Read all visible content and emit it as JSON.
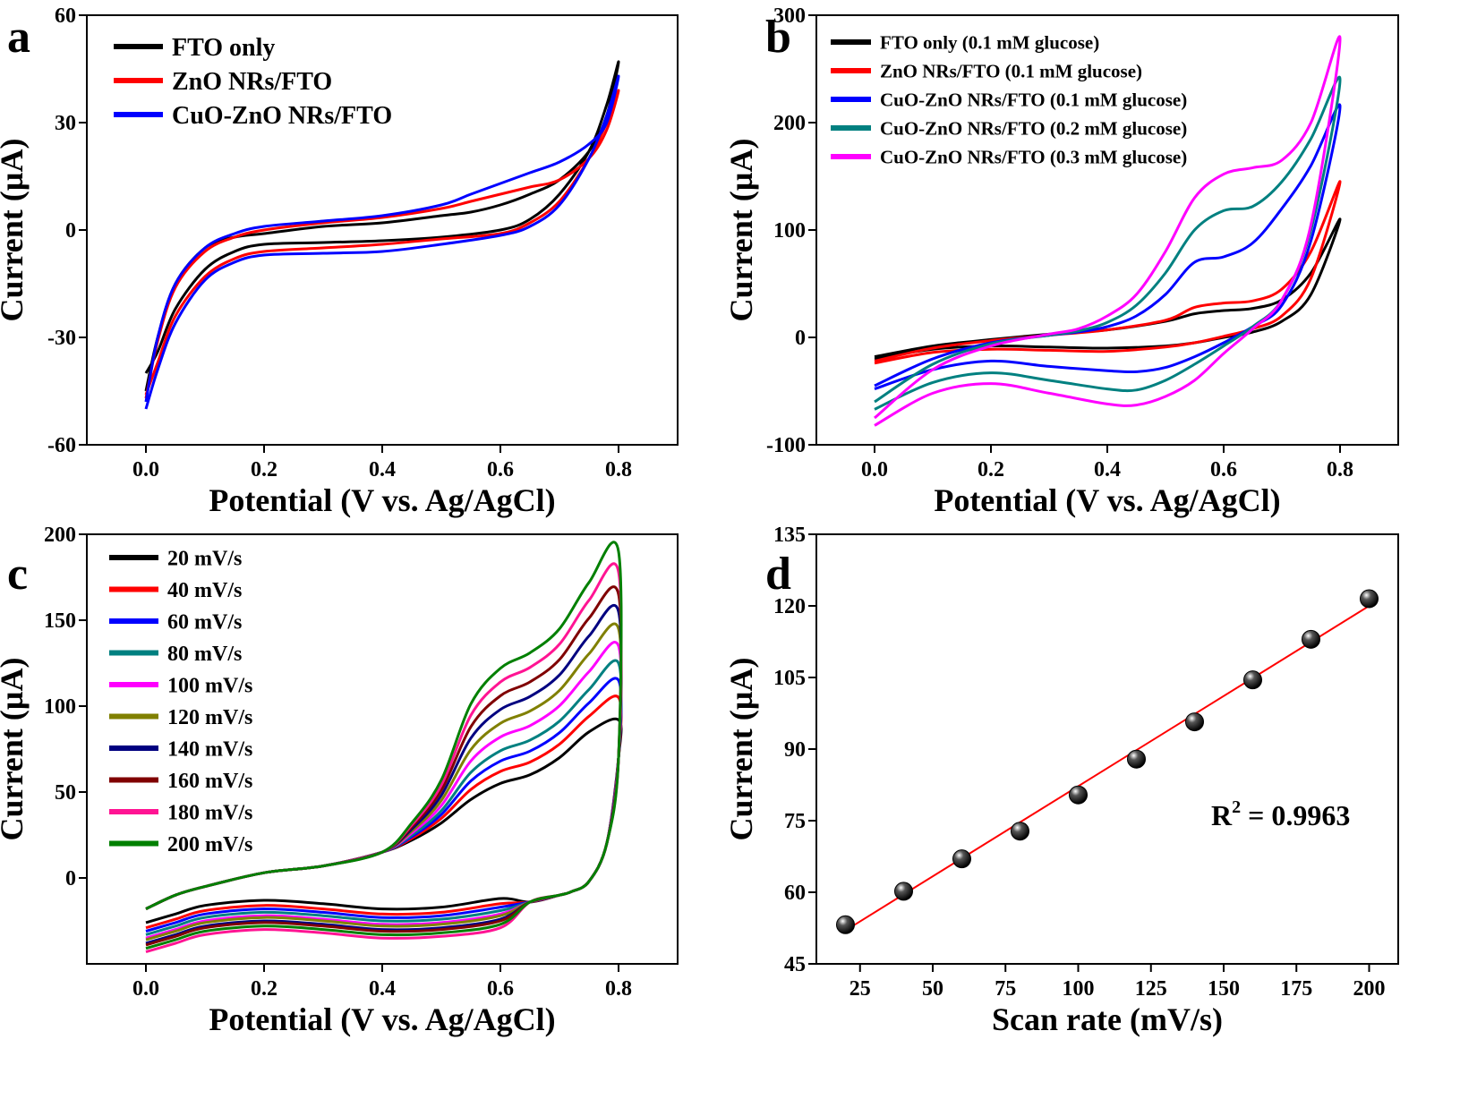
{
  "chart_data": [
    {
      "panel": "a",
      "type": "line",
      "xlabel": "Potential (V vs. Ag/AgCl)",
      "ylabel": "Current (µA)",
      "xlim": [
        -0.1,
        0.9
      ],
      "ylim": [
        -60,
        60
      ],
      "xticks": [
        0.0,
        0.2,
        0.4,
        0.6,
        0.8
      ],
      "xtick_labels": [
        "0.0",
        "0.2",
        "0.4",
        "0.6",
        "0.8"
      ],
      "yticks": [
        -60,
        -30,
        0,
        30,
        60
      ],
      "ytick_labels": [
        "-60",
        "-30",
        "0",
        "30",
        "60"
      ],
      "legend_position": "top-left",
      "series": [
        {
          "name": "FTO only",
          "color": "#000000",
          "x": [
            0.0,
            0.02,
            0.05,
            0.1,
            0.15,
            0.2,
            0.3,
            0.4,
            0.5,
            0.6,
            0.65,
            0.7,
            0.75,
            0.78,
            0.8,
            0.78,
            0.75,
            0.7,
            0.65,
            0.6,
            0.55,
            0.5,
            0.4,
            0.3,
            0.2,
            0.15,
            0.1,
            0.05,
            0.02,
            0.0
          ],
          "y": [
            -40,
            -34,
            -22,
            -11,
            -6,
            -4,
            -3.5,
            -3,
            -2,
            0,
            3,
            10,
            22,
            35,
            47,
            32,
            22,
            14,
            10,
            7,
            5,
            4,
            2,
            1,
            -1,
            -2,
            -5,
            -15,
            -30,
            -45
          ]
        },
        {
          "name": "ZnO NRs/FTO",
          "color": "#ff0000",
          "x": [
            0.0,
            0.02,
            0.05,
            0.1,
            0.15,
            0.2,
            0.3,
            0.4,
            0.5,
            0.6,
            0.65,
            0.7,
            0.75,
            0.78,
            0.8,
            0.78,
            0.75,
            0.7,
            0.65,
            0.6,
            0.55,
            0.5,
            0.4,
            0.3,
            0.2,
            0.15,
            0.1,
            0.05,
            0.02,
            0.0
          ],
          "y": [
            -46,
            -37,
            -24,
            -13,
            -8,
            -6,
            -5,
            -4,
            -2.5,
            -1,
            2,
            8,
            20,
            30,
            39,
            28,
            20,
            14,
            12,
            10,
            8,
            6,
            3.5,
            2,
            0,
            -2,
            -6,
            -16,
            -31,
            -47
          ]
        },
        {
          "name": "CuO-ZnO NRs/FTO",
          "color": "#0000ff",
          "x": [
            0.0,
            0.02,
            0.05,
            0.1,
            0.15,
            0.2,
            0.3,
            0.4,
            0.5,
            0.6,
            0.65,
            0.7,
            0.75,
            0.78,
            0.8,
            0.78,
            0.75,
            0.7,
            0.65,
            0.6,
            0.55,
            0.5,
            0.4,
            0.3,
            0.2,
            0.15,
            0.1,
            0.05,
            0.02,
            0.0
          ],
          "y": [
            -50,
            -39,
            -26,
            -14,
            -9,
            -7,
            -6.5,
            -6,
            -4,
            -1.5,
            1,
            7,
            20,
            32,
            43,
            30,
            24,
            19,
            16,
            13,
            10,
            7,
            4,
            2.5,
            1,
            -1,
            -5,
            -15,
            -30,
            -48
          ]
        }
      ]
    },
    {
      "panel": "b",
      "type": "line",
      "xlabel": "Potential (V vs. Ag/AgCl)",
      "ylabel": "Current (µA)",
      "xlim": [
        -0.1,
        0.9
      ],
      "ylim": [
        -100,
        300
      ],
      "xticks": [
        0.0,
        0.2,
        0.4,
        0.6,
        0.8
      ],
      "xtick_labels": [
        "0.0",
        "0.2",
        "0.4",
        "0.6",
        "0.8"
      ],
      "yticks": [
        -100,
        0,
        100,
        200,
        300
      ],
      "ytick_labels": [
        "-100",
        "0",
        "100",
        "200",
        "300"
      ],
      "legend_position": "top-left",
      "series": [
        {
          "name": "FTO only (0.1 mM glucose)",
          "color": "#000000",
          "x": [
            0.0,
            0.1,
            0.2,
            0.3,
            0.4,
            0.5,
            0.55,
            0.6,
            0.65,
            0.7,
            0.75,
            0.8,
            0.75,
            0.7,
            0.65,
            0.6,
            0.55,
            0.5,
            0.4,
            0.3,
            0.2,
            0.1,
            0.0
          ],
          "y": [
            -18,
            -8,
            -2,
            3,
            7,
            15,
            22,
            25,
            27,
            35,
            60,
            110,
            40,
            15,
            5,
            0,
            -5,
            -8,
            -10,
            -9,
            -8,
            -11,
            -20
          ]
        },
        {
          "name": "ZnO NRs/FTO (0.1 mM glucose)",
          "color": "#ff0000",
          "x": [
            0.0,
            0.1,
            0.2,
            0.3,
            0.4,
            0.5,
            0.55,
            0.6,
            0.65,
            0.7,
            0.75,
            0.8,
            0.75,
            0.7,
            0.65,
            0.6,
            0.55,
            0.5,
            0.4,
            0.3,
            0.2,
            0.1,
            0.0
          ],
          "y": [
            -22,
            -10,
            -3,
            2,
            7,
            16,
            28,
            32,
            34,
            45,
            80,
            145,
            55,
            20,
            8,
            1,
            -5,
            -9,
            -13,
            -12,
            -11,
            -14,
            -24
          ]
        },
        {
          "name": "CuO-ZnO NRs/FTO (0.1 mM glucose)",
          "color": "#0000ff",
          "x": [
            0.0,
            0.1,
            0.2,
            0.3,
            0.35,
            0.4,
            0.45,
            0.5,
            0.55,
            0.6,
            0.65,
            0.7,
            0.75,
            0.8,
            0.75,
            0.7,
            0.65,
            0.6,
            0.55,
            0.5,
            0.45,
            0.4,
            0.3,
            0.2,
            0.1,
            0.0
          ],
          "y": [
            -45,
            -20,
            -5,
            2,
            5,
            10,
            20,
            40,
            70,
            75,
            88,
            120,
            160,
            215,
            90,
            30,
            10,
            -5,
            -18,
            -28,
            -32,
            -31,
            -27,
            -22,
            -30,
            -48
          ]
        },
        {
          "name": "CuO-ZnO NRs/FTO (0.2 mM glucose)",
          "color": "#008080",
          "x": [
            0.0,
            0.1,
            0.2,
            0.3,
            0.35,
            0.4,
            0.45,
            0.5,
            0.55,
            0.6,
            0.65,
            0.7,
            0.75,
            0.8,
            0.75,
            0.7,
            0.65,
            0.6,
            0.55,
            0.5,
            0.45,
            0.4,
            0.3,
            0.2,
            0.1,
            0.0
          ],
          "y": [
            -60,
            -25,
            -6,
            2,
            6,
            14,
            30,
            60,
            100,
            118,
            122,
            145,
            185,
            240,
            100,
            35,
            10,
            -8,
            -25,
            -40,
            -49,
            -48,
            -40,
            -33,
            -42,
            -67
          ]
        },
        {
          "name": "CuO-ZnO NRs/FTO (0.3 mM glucose)",
          "color": "#ff00ff",
          "x": [
            0.0,
            0.1,
            0.2,
            0.3,
            0.35,
            0.4,
            0.45,
            0.5,
            0.55,
            0.6,
            0.65,
            0.7,
            0.75,
            0.8,
            0.75,
            0.7,
            0.65,
            0.6,
            0.55,
            0.5,
            0.45,
            0.4,
            0.3,
            0.2,
            0.1,
            0.0
          ],
          "y": [
            -75,
            -30,
            -8,
            3,
            8,
            20,
            40,
            80,
            130,
            152,
            158,
            165,
            200,
            278,
            105,
            35,
            8,
            -15,
            -40,
            -55,
            -63,
            -62,
            -52,
            -43,
            -52,
            -82
          ]
        }
      ]
    },
    {
      "panel": "c",
      "type": "line",
      "xlabel": "Potential (V vs. Ag/AgCl)",
      "ylabel": "Current (µA)",
      "xlim": [
        -0.1,
        0.9
      ],
      "ylim": [
        -50,
        200
      ],
      "xticks": [
        0.0,
        0.2,
        0.4,
        0.6,
        0.8
      ],
      "xtick_labels": [
        "0.0",
        "0.2",
        "0.4",
        "0.6",
        "0.8"
      ],
      "yticks": [
        0,
        50,
        100,
        150,
        200
      ],
      "ytick_labels": [
        "0",
        "50",
        "100",
        "150",
        "200"
      ],
      "legend_position": "top-left",
      "series": [
        {
          "name": "20 mV/s",
          "color": "#000000",
          "peak": 55,
          "top": 92,
          "low": -18
        },
        {
          "name": "40 mV/s",
          "color": "#ff0000",
          "peak": 62,
          "top": 105,
          "low": -21
        },
        {
          "name": "60 mV/s",
          "color": "#0000ff",
          "peak": 68,
          "top": 115,
          "low": -23
        },
        {
          "name": "80 mV/s",
          "color": "#008080",
          "peak": 74,
          "top": 125,
          "low": -25
        },
        {
          "name": "100 mV/s",
          "color": "#ff00ff",
          "peak": 82,
          "top": 135,
          "low": -27
        },
        {
          "name": "120 mV/s",
          "color": "#808000",
          "peak": 90,
          "top": 145,
          "low": -28
        },
        {
          "name": "140 mV/s",
          "color": "#000080",
          "peak": 98,
          "top": 155,
          "low": -30
        },
        {
          "name": "160 mV/s",
          "color": "#800000",
          "peak": 106,
          "top": 165,
          "low": -31
        },
        {
          "name": "180 mV/s",
          "color": "#ff1493",
          "peak": 114,
          "top": 178,
          "low": -35
        },
        {
          "name": "200 mV/s",
          "color": "#008000",
          "peak": 122,
          "top": 190,
          "low": -33
        }
      ]
    },
    {
      "panel": "d",
      "type": "scatter",
      "xlabel": "Scan rate (mV/s)",
      "ylabel": "Current (µA)",
      "xlim": [
        10,
        210
      ],
      "ylim": [
        45,
        135
      ],
      "xticks": [
        25,
        50,
        75,
        100,
        125,
        150,
        175,
        200
      ],
      "xtick_labels": [
        "25",
        "50",
        "75",
        "100",
        "125",
        "150",
        "175",
        "200"
      ],
      "yticks": [
        45,
        60,
        75,
        90,
        105,
        120,
        135
      ],
      "ytick_labels": [
        "45",
        "60",
        "75",
        "90",
        "105",
        "120",
        "135"
      ],
      "x": [
        20,
        40,
        60,
        80,
        100,
        120,
        140,
        160,
        180,
        200
      ],
      "y": [
        53.2,
        60.2,
        67.0,
        72.8,
        80.4,
        87.9,
        95.7,
        104.5,
        113.0,
        121.5
      ],
      "fit": {
        "x": [
          20,
          200
        ],
        "y": [
          52.0,
          120.0
        ],
        "color": "#ff0000"
      },
      "annotation": "R",
      "annotation_sup": "2",
      "annotation_rest": " = 0.9963"
    }
  ],
  "labels": {
    "a": "a",
    "b": "b",
    "c": "c",
    "d": "d"
  }
}
